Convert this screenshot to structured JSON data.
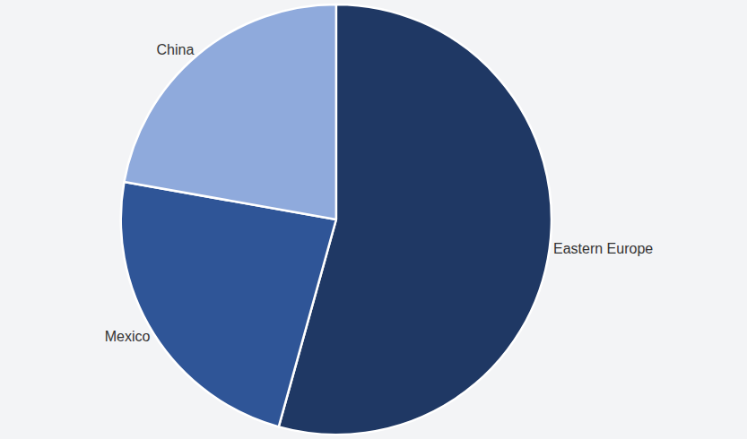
{
  "chart_data": {
    "type": "pie",
    "categories": [
      "Eastern Europe",
      "Mexico",
      "China"
    ],
    "values": [
      54.3,
      23.5,
      22.2
    ],
    "colors": [
      "#1f3864",
      "#2f5597",
      "#8faadc"
    ],
    "legend": false
  }
}
